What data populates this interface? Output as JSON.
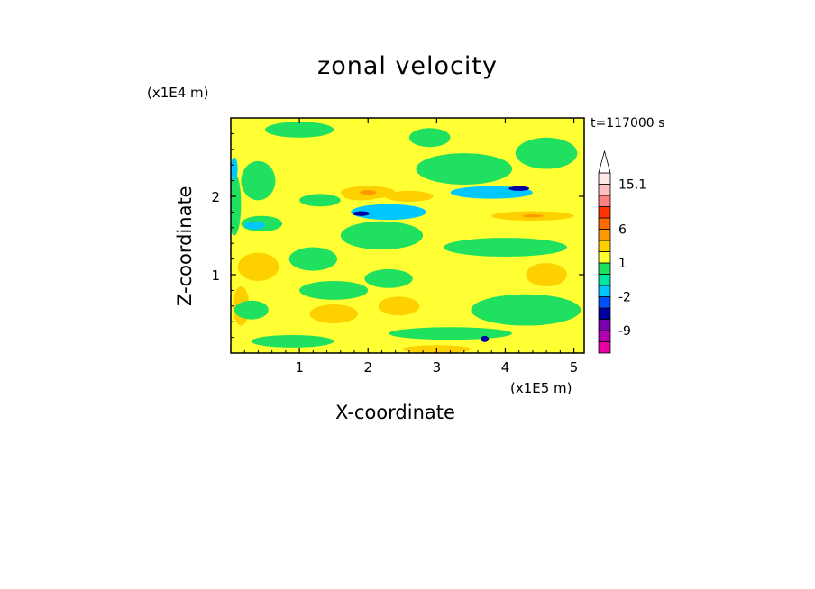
{
  "chart_data": {
    "type": "heatmap",
    "title": "zonal velocity",
    "xlabel": "X-coordinate",
    "ylabel": "Z-coordinate",
    "x_unit": "(x1E5 m)",
    "y_unit": "(x1E4 m)",
    "time_label": "t=117000 s",
    "xlim": [
      0,
      5.15
    ],
    "ylim": [
      0,
      3.0
    ],
    "x_ticks": [
      1,
      2,
      3,
      4,
      5
    ],
    "x_tick_labels": [
      "1",
      "2",
      "3",
      "4",
      "5"
    ],
    "y_ticks": [
      1,
      2
    ],
    "y_tick_labels": [
      "1",
      "2"
    ],
    "colorbar": {
      "levels": [
        "<-12",
        "-12",
        "-9",
        "-6",
        "-3",
        "-2",
        "-1",
        "0",
        "1",
        "2",
        "4",
        "6",
        "8",
        "10",
        "12",
        "15.1",
        ">15.1"
      ],
      "labels": [
        "15.1",
        "6",
        "1",
        "-2",
        "-9"
      ],
      "colors": [
        "#e800a0",
        "#b000b0",
        "#7800b0",
        "#0000a0",
        "#0050ff",
        "#00c8ff",
        "#00e8a0",
        "#20e060",
        "#ffff33",
        "#ffd000",
        "#ff9900",
        "#ff6a00",
        "#ff3300",
        "#ff8080",
        "#ffc0c0",
        "#ffe8e8"
      ]
    },
    "background_level": "0 to 1",
    "regions": [
      {
        "level": "2 to 4",
        "x": 0.4,
        "z": 1.1,
        "rx": 0.3,
        "rz": 0.18
      },
      {
        "level": "2 to 4",
        "x": 2.0,
        "z": 2.05,
        "rx": 0.4,
        "rz": 0.08
      },
      {
        "level": "2 to 4",
        "x": 2.6,
        "z": 2.0,
        "rx": 0.35,
        "rz": 0.07
      },
      {
        "level": "2 to 4",
        "x": 1.9,
        "z": 2.0,
        "rx": 0.25,
        "rz": 0.05
      },
      {
        "level": "2 to 4",
        "x": 1.5,
        "z": 0.5,
        "rx": 0.35,
        "rz": 0.12
      },
      {
        "level": "2 to 4",
        "x": 2.45,
        "z": 0.6,
        "rx": 0.3,
        "rz": 0.12
      },
      {
        "level": "2 to 4",
        "x": 4.4,
        "z": 1.75,
        "rx": 0.6,
        "rz": 0.06
      },
      {
        "level": "2 to 4",
        "x": 3.0,
        "z": 0.05,
        "rx": 0.5,
        "rz": 0.05
      },
      {
        "level": "2 to 4",
        "x": 0.15,
        "z": 0.6,
        "rx": 0.12,
        "rz": 0.25
      },
      {
        "level": "2 to 4",
        "x": 4.6,
        "z": 1.0,
        "rx": 0.3,
        "rz": 0.15
      },
      {
        "level": "4 to 6",
        "x": 2.0,
        "z": 2.05,
        "rx": 0.12,
        "rz": 0.03
      },
      {
        "level": "4 to 6",
        "x": 4.4,
        "z": 1.75,
        "rx": 0.15,
        "rz": 0.02
      },
      {
        "level": "-1 to 0",
        "x": 1.0,
        "z": 2.85,
        "rx": 0.5,
        "rz": 0.1
      },
      {
        "level": "-1 to 0",
        "x": 0.4,
        "z": 2.2,
        "rx": 0.25,
        "rz": 0.25
      },
      {
        "level": "-1 to 0",
        "x": 1.3,
        "z": 1.95,
        "rx": 0.3,
        "rz": 0.08
      },
      {
        "level": "-1 to 0",
        "x": 0.45,
        "z": 1.65,
        "rx": 0.3,
        "rz": 0.1
      },
      {
        "level": "-1 to 0",
        "x": 1.2,
        "z": 1.2,
        "rx": 0.35,
        "rz": 0.15
      },
      {
        "level": "-1 to 0",
        "x": 2.2,
        "z": 1.5,
        "rx": 0.6,
        "rz": 0.18
      },
      {
        "level": "-1 to 0",
        "x": 1.5,
        "z": 0.8,
        "rx": 0.5,
        "rz": 0.12
      },
      {
        "level": "-1 to 0",
        "x": 2.3,
        "z": 0.95,
        "rx": 0.35,
        "rz": 0.12
      },
      {
        "level": "-1 to 0",
        "x": 0.3,
        "z": 0.55,
        "rx": 0.25,
        "rz": 0.12
      },
      {
        "level": "-1 to 0",
        "x": 3.4,
        "z": 2.35,
        "rx": 0.7,
        "rz": 0.2
      },
      {
        "level": "-1 to 0",
        "x": 4.6,
        "z": 2.55,
        "rx": 0.45,
        "rz": 0.2
      },
      {
        "level": "-1 to 0",
        "x": 4.0,
        "z": 1.35,
        "rx": 0.9,
        "rz": 0.12
      },
      {
        "level": "-1 to 0",
        "x": 4.3,
        "z": 0.55,
        "rx": 0.8,
        "rz": 0.2
      },
      {
        "level": "-1 to 0",
        "x": 3.2,
        "z": 0.25,
        "rx": 0.9,
        "rz": 0.08
      },
      {
        "level": "-1 to 0",
        "x": 0.9,
        "z": 0.15,
        "rx": 0.6,
        "rz": 0.08
      },
      {
        "level": "-1 to 0",
        "x": 2.9,
        "z": 2.75,
        "rx": 0.3,
        "rz": 0.12
      },
      {
        "level": "-1 to 0",
        "x": 0.05,
        "z": 1.9,
        "rx": 0.1,
        "rz": 0.4
      },
      {
        "level": "-2 to -1",
        "x": 2.3,
        "z": 1.8,
        "rx": 0.55,
        "rz": 0.1
      },
      {
        "level": "-2 to -1",
        "x": 3.8,
        "z": 2.05,
        "rx": 0.6,
        "rz": 0.08
      },
      {
        "level": "-2 to -1",
        "x": 0.35,
        "z": 1.63,
        "rx": 0.15,
        "rz": 0.05
      },
      {
        "level": "-2 to -1",
        "x": 0.05,
        "z": 2.35,
        "rx": 0.05,
        "rz": 0.15
      },
      {
        "level": "-3 to -2",
        "x": 4.2,
        "z": 2.1,
        "rx": 0.15,
        "rz": 0.03
      },
      {
        "level": "-3 to -2",
        "x": 1.9,
        "z": 1.78,
        "rx": 0.12,
        "rz": 0.03
      },
      {
        "level": "-3 to -2",
        "x": 3.7,
        "z": 0.18,
        "rx": 0.06,
        "rz": 0.04
      }
    ],
    "grid": false,
    "colorbar_placement": "right"
  }
}
